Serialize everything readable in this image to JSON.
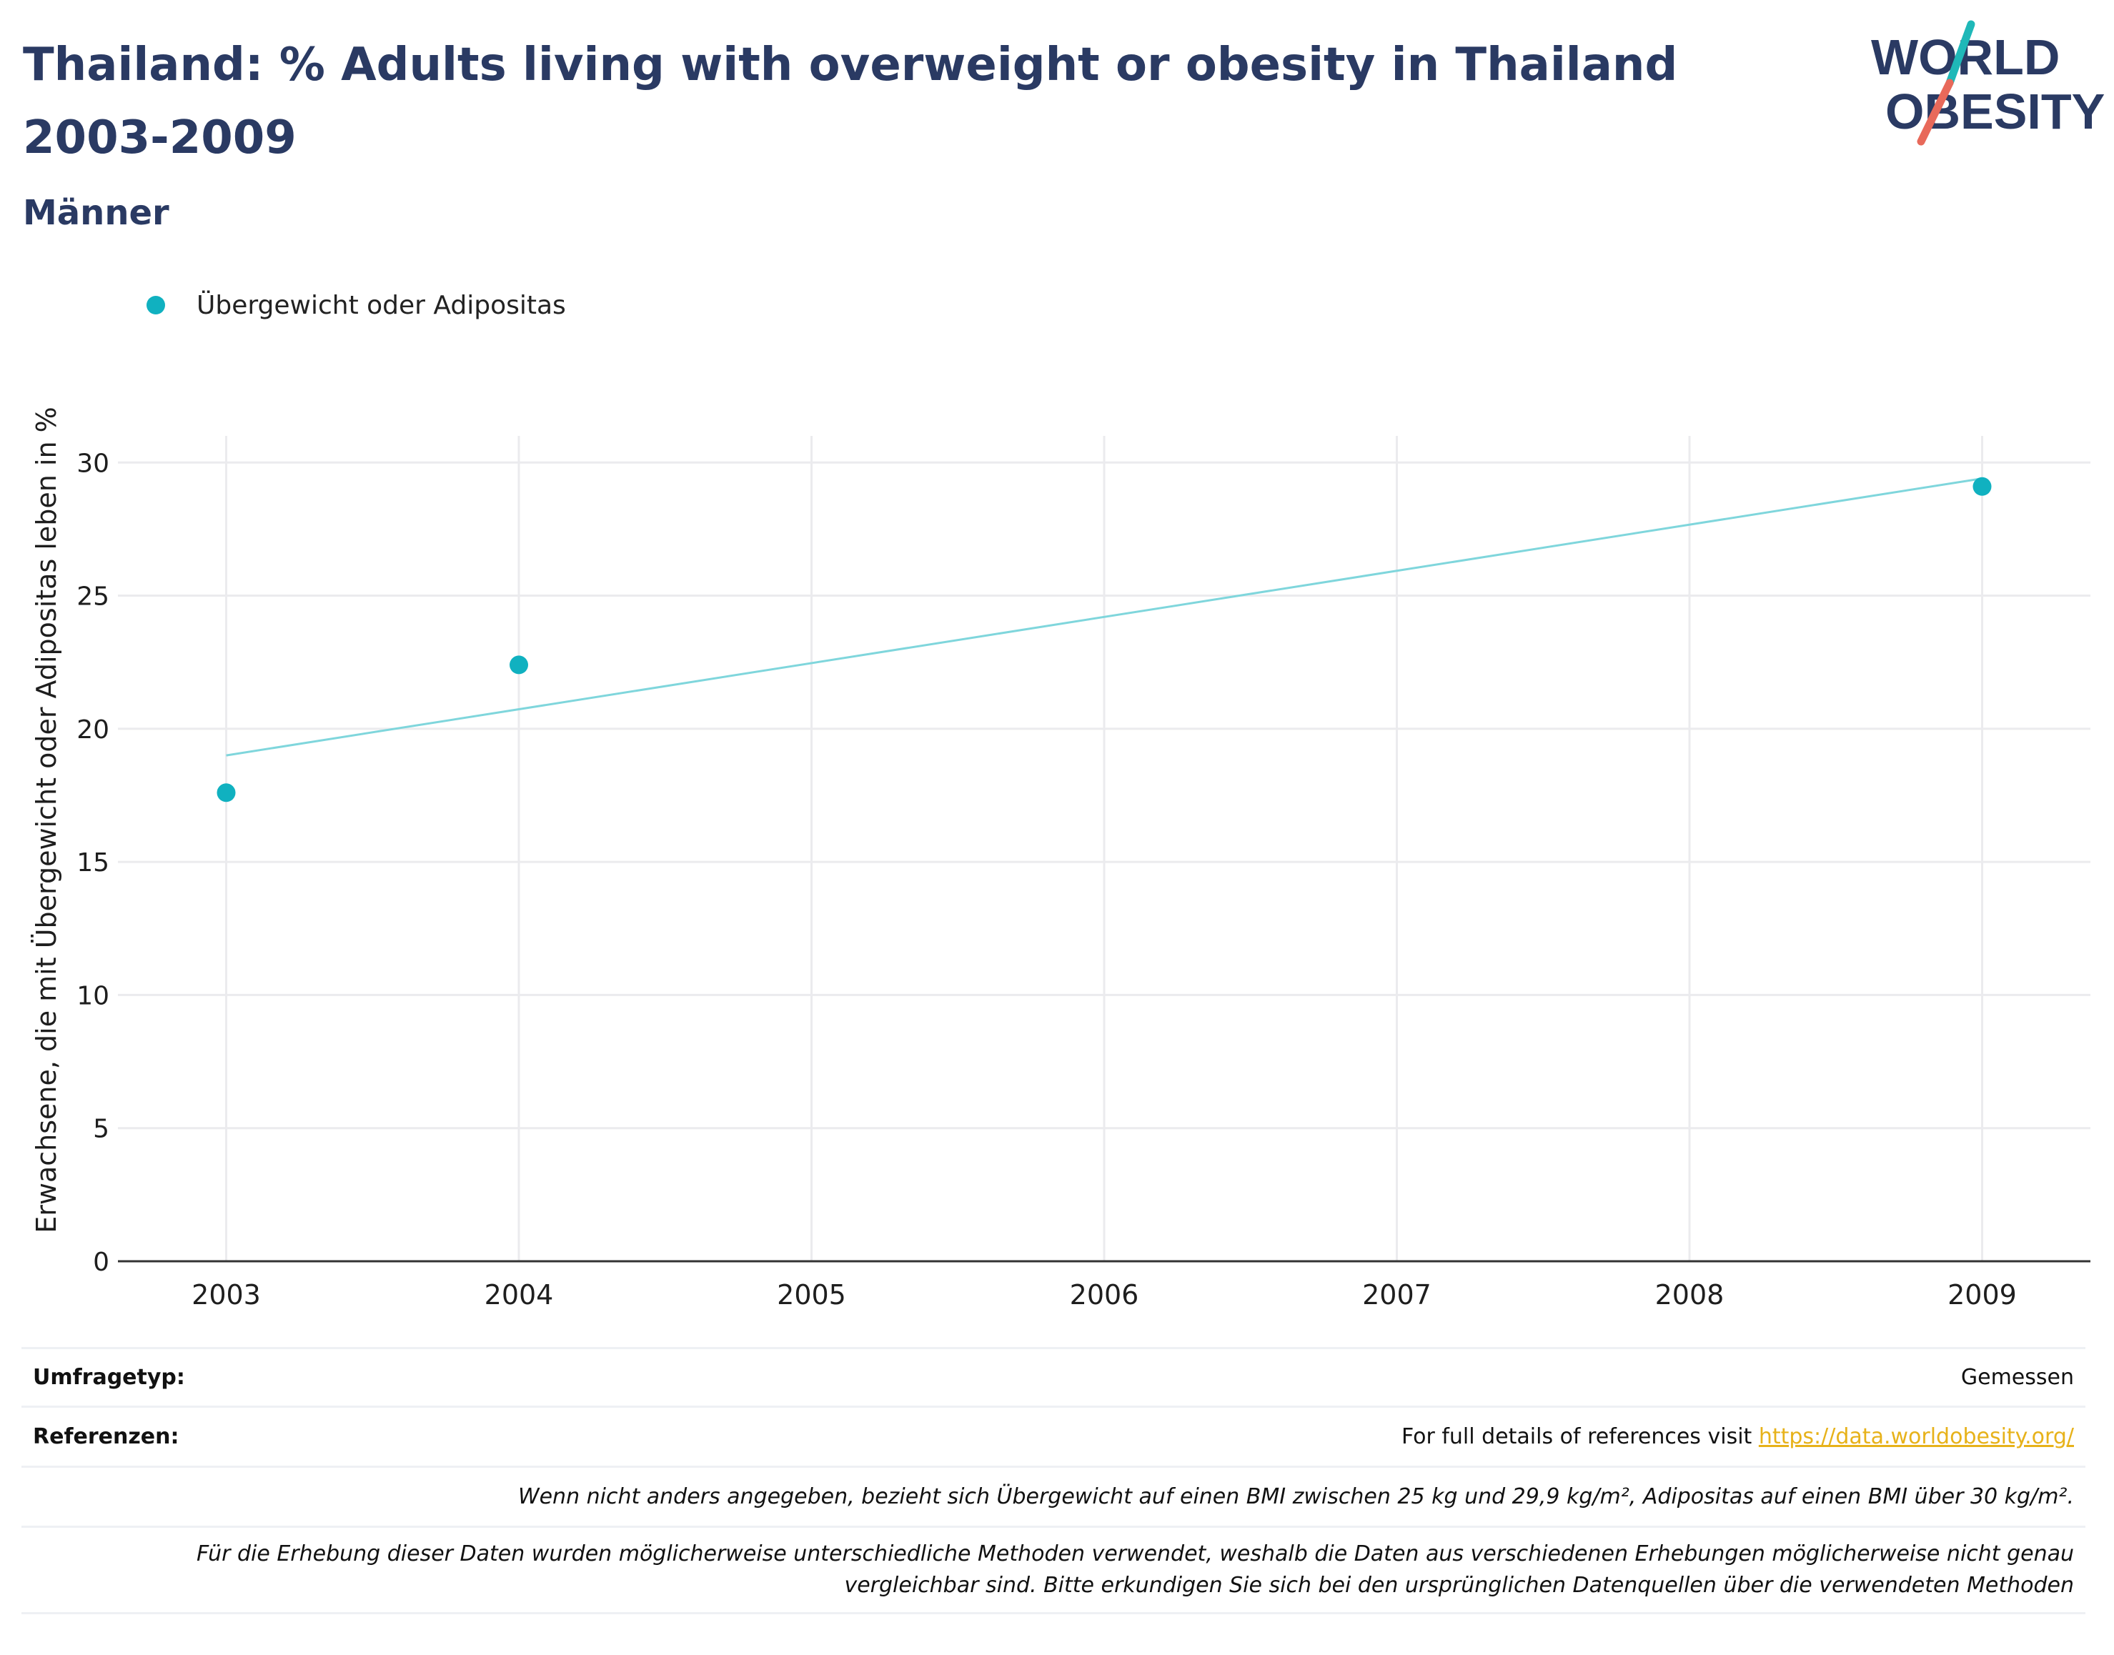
{
  "header": {
    "title": "Thailand: % Adults living with overweight or obesity in Thailand 2003-2009",
    "subtitle": "Männer"
  },
  "logo": {
    "line1": "WORLD",
    "line2": "OBESITY",
    "colors": {
      "text": "#2a3a63",
      "teal": "#1fb8b8",
      "coral": "#e8695a"
    }
  },
  "legend": {
    "label": "Übergewicht oder Adipositas",
    "color": "#10b1c0"
  },
  "chart_data": {
    "type": "scatter",
    "ylabel": "Erwachsene, die mit Übergewicht oder Adipositas leben in %",
    "xlabel": "",
    "x_ticks": [
      "2003",
      "2004",
      "2005",
      "2006",
      "2007",
      "2008",
      "2009"
    ],
    "y_ticks": [
      0,
      5,
      10,
      15,
      20,
      25,
      30
    ],
    "xlim": [
      2002.63,
      2009.37
    ],
    "ylim": [
      0,
      31
    ],
    "grid": true,
    "series": [
      {
        "name": "Übergewicht oder Adipositas",
        "color": "#10b1c0",
        "points": [
          {
            "x": 2003,
            "y": 17.6
          },
          {
            "x": 2004,
            "y": 22.4
          },
          {
            "x": 2009,
            "y": 29.1
          }
        ]
      }
    ],
    "trendline": {
      "color": "#7fd6dc",
      "points": [
        {
          "x": 2003,
          "y": 19.0
        },
        {
          "x": 2009,
          "y": 29.4
        }
      ]
    }
  },
  "info": {
    "survey_label": "Umfragetyp:",
    "survey_value": "Gemessen",
    "references_label": "Referenzen:",
    "references_text": "For full details of references visit ",
    "references_link": "https://data.worldobesity.org/",
    "note1": "Wenn nicht anders angegeben, bezieht sich Übergewicht auf einen BMI zwischen 25 kg und 29,9 kg/m², Adipositas auf einen BMI über 30 kg/m².",
    "note2_line1": "Für die Erhebung dieser Daten wurden möglicherweise unterschiedliche Methoden verwendet, weshalb die Daten aus verschiedenen Erhebungen möglicherweise nicht genau",
    "note2_line2": "vergleichbar sind. Bitte erkundigen Sie sich bei den ursprünglichen Datenquellen über die verwendeten Methoden"
  }
}
